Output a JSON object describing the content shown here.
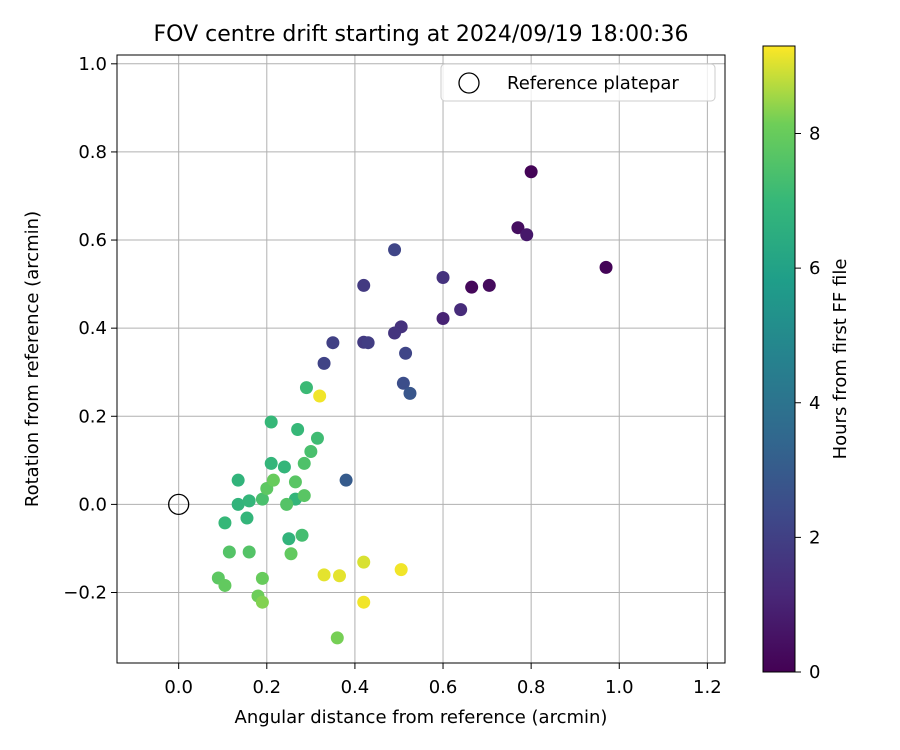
{
  "chart_data": {
    "type": "scatter",
    "title": "FOV centre drift starting at 2024/09/19 18:00:36",
    "xlabel": "Angular distance from reference (arcmin)",
    "ylabel": "Rotation from reference (arcmin)",
    "xlim": [
      -0.14,
      1.24
    ],
    "ylim": [
      -0.36,
      1.02
    ],
    "xticks": [
      0.0,
      0.2,
      0.4,
      0.6,
      0.8,
      1.0,
      1.2
    ],
    "xtick_labels": [
      "0.0",
      "0.2",
      "0.4",
      "0.6",
      "0.8",
      "1.0",
      "1.2"
    ],
    "yticks": [
      -0.2,
      0.0,
      0.2,
      0.4,
      0.6,
      0.8,
      1.0
    ],
    "ytick_labels": [
      "−0.2",
      "0.0",
      "0.2",
      "0.4",
      "0.6",
      "0.8",
      "1.0"
    ],
    "grid": true,
    "legend": {
      "position": "top-right",
      "label": "Reference platepar"
    },
    "reference_point": {
      "x": 0.0,
      "y": 0.0
    },
    "colorbar": {
      "label": "Hours from first FF file",
      "min": 0,
      "max": 9.3,
      "colormap": "viridis",
      "ticks": [
        0,
        2,
        4,
        6,
        8
      ],
      "tick_labels": [
        "0",
        "2",
        "4",
        "6",
        "8"
      ]
    },
    "points": [
      {
        "x": 0.8,
        "y": 0.755,
        "c": 0.1
      },
      {
        "x": 0.97,
        "y": 0.538,
        "c": 0.1
      },
      {
        "x": 0.665,
        "y": 0.493,
        "c": 0.2
      },
      {
        "x": 0.705,
        "y": 0.497,
        "c": 0.3
      },
      {
        "x": 0.77,
        "y": 0.628,
        "c": 0.4
      },
      {
        "x": 0.79,
        "y": 0.612,
        "c": 0.7
      },
      {
        "x": 0.6,
        "y": 0.422,
        "c": 1.0
      },
      {
        "x": 0.64,
        "y": 0.442,
        "c": 1.3
      },
      {
        "x": 0.6,
        "y": 0.515,
        "c": 1.5
      },
      {
        "x": 0.505,
        "y": 0.403,
        "c": 1.5
      },
      {
        "x": 0.49,
        "y": 0.389,
        "c": 1.6
      },
      {
        "x": 0.42,
        "y": 0.497,
        "c": 1.8
      },
      {
        "x": 0.42,
        "y": 0.368,
        "c": 1.8
      },
      {
        "x": 0.43,
        "y": 0.367,
        "c": 1.9
      },
      {
        "x": 0.35,
        "y": 0.367,
        "c": 2.0
      },
      {
        "x": 0.33,
        "y": 0.32,
        "c": 2.1
      },
      {
        "x": 0.49,
        "y": 0.578,
        "c": 2.2
      },
      {
        "x": 0.515,
        "y": 0.343,
        "c": 2.2
      },
      {
        "x": 0.51,
        "y": 0.275,
        "c": 2.5
      },
      {
        "x": 0.525,
        "y": 0.252,
        "c": 2.8
      },
      {
        "x": 0.38,
        "y": 0.055,
        "c": 3.0
      },
      {
        "x": 0.135,
        "y": 0.055,
        "c": 6.8
      },
      {
        "x": 0.135,
        "y": 0.0,
        "c": 6.8
      },
      {
        "x": 0.16,
        "y": 0.008,
        "c": 6.9
      },
      {
        "x": 0.155,
        "y": -0.031,
        "c": 6.9
      },
      {
        "x": 0.105,
        "y": -0.042,
        "c": 7.0
      },
      {
        "x": 0.21,
        "y": 0.187,
        "c": 7.0
      },
      {
        "x": 0.24,
        "y": 0.085,
        "c": 6.9
      },
      {
        "x": 0.21,
        "y": 0.093,
        "c": 6.9
      },
      {
        "x": 0.265,
        "y": 0.012,
        "c": 6.9
      },
      {
        "x": 0.25,
        "y": -0.078,
        "c": 6.8
      },
      {
        "x": 0.27,
        "y": 0.17,
        "c": 7.0
      },
      {
        "x": 0.29,
        "y": 0.265,
        "c": 7.1
      },
      {
        "x": 0.315,
        "y": 0.15,
        "c": 7.2
      },
      {
        "x": 0.3,
        "y": 0.12,
        "c": 7.4
      },
      {
        "x": 0.285,
        "y": 0.093,
        "c": 7.5
      },
      {
        "x": 0.28,
        "y": -0.07,
        "c": 7.3
      },
      {
        "x": 0.19,
        "y": 0.012,
        "c": 7.4
      },
      {
        "x": 0.245,
        "y": 0.0,
        "c": 7.6
      },
      {
        "x": 0.265,
        "y": 0.051,
        "c": 7.7
      },
      {
        "x": 0.285,
        "y": 0.02,
        "c": 7.7
      },
      {
        "x": 0.2,
        "y": 0.036,
        "c": 7.8
      },
      {
        "x": 0.215,
        "y": 0.055,
        "c": 8.0
      },
      {
        "x": 0.115,
        "y": -0.108,
        "c": 7.6
      },
      {
        "x": 0.16,
        "y": -0.108,
        "c": 7.6
      },
      {
        "x": 0.255,
        "y": -0.112,
        "c": 7.9
      },
      {
        "x": 0.09,
        "y": -0.167,
        "c": 7.8
      },
      {
        "x": 0.105,
        "y": -0.184,
        "c": 7.9
      },
      {
        "x": 0.19,
        "y": -0.168,
        "c": 8.0
      },
      {
        "x": 0.18,
        "y": -0.208,
        "c": 8.1
      },
      {
        "x": 0.19,
        "y": -0.222,
        "c": 8.3
      },
      {
        "x": 0.36,
        "y": -0.303,
        "c": 8.2
      },
      {
        "x": 0.32,
        "y": 0.246,
        "c": 9.2
      },
      {
        "x": 0.33,
        "y": -0.16,
        "c": 9.1
      },
      {
        "x": 0.365,
        "y": -0.162,
        "c": 9.1
      },
      {
        "x": 0.42,
        "y": -0.131,
        "c": 9.0
      },
      {
        "x": 0.42,
        "y": -0.222,
        "c": 9.2
      },
      {
        "x": 0.505,
        "y": -0.148,
        "c": 9.2
      }
    ]
  }
}
